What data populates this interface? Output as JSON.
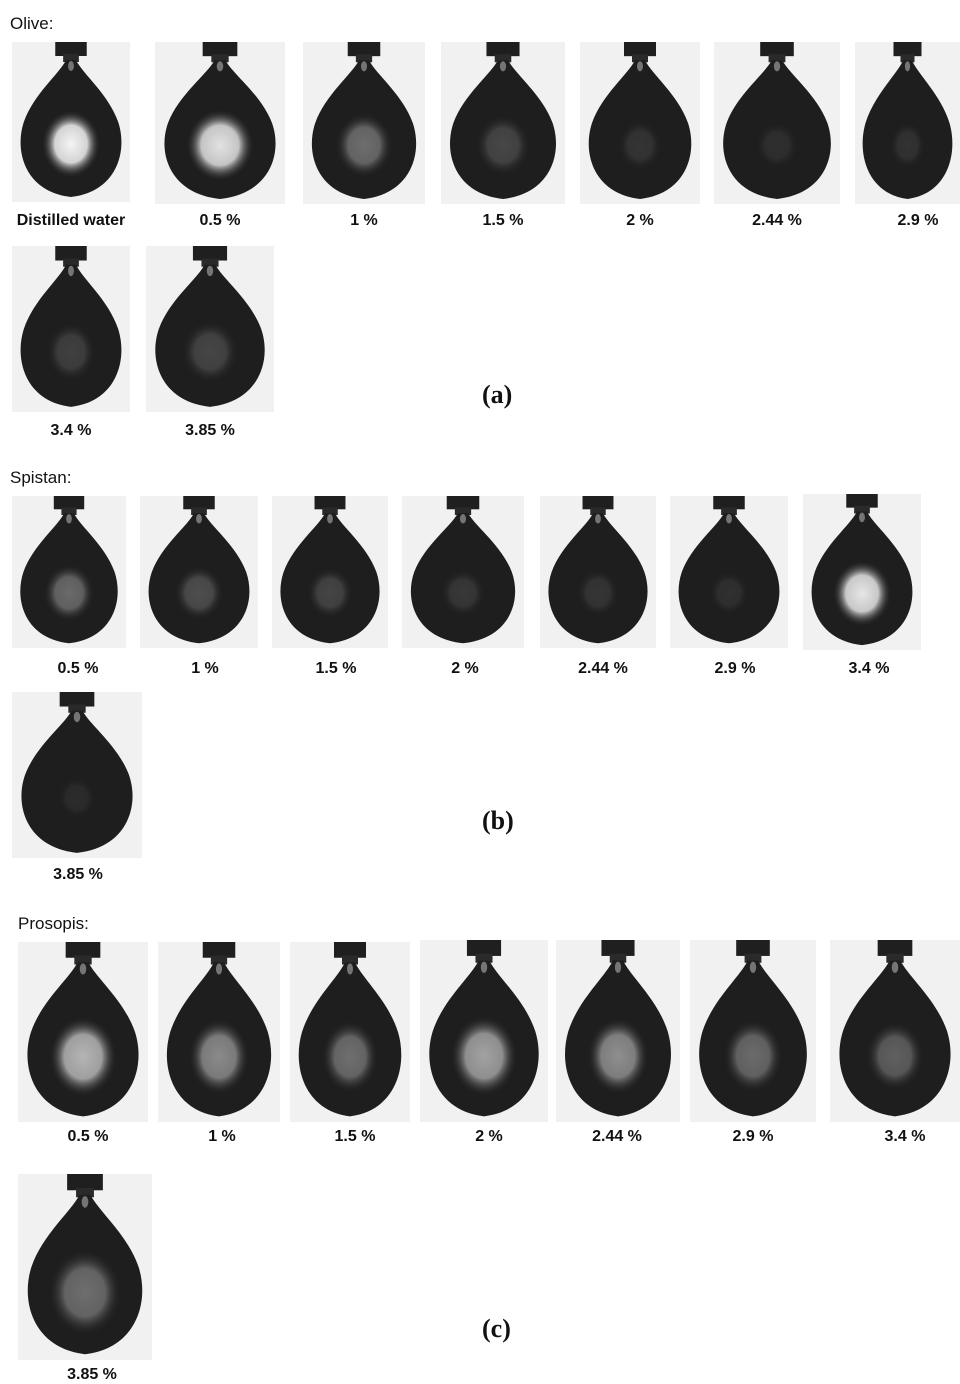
{
  "figure": {
    "panels": [
      {
        "title": "Olive:",
        "letter": "(a)",
        "samples": [
          {
            "label": "Distilled water",
            "core_color": "#f4f4f4",
            "core_size": 1.0
          },
          {
            "label": "0.5 %",
            "core_color": "#e2e2e2",
            "core_size": 1.05
          },
          {
            "label": "1 %",
            "core_color": "#6e6e6e",
            "core_size": 0.95
          },
          {
            "label": "1.5 %",
            "core_color": "#474747",
            "core_size": 0.9
          },
          {
            "label": "2 %",
            "core_color": "#343434",
            "core_size": 0.75
          },
          {
            "label": "2.44 %",
            "core_color": "#2f2f2f",
            "core_size": 0.7
          },
          {
            "label": "2.9 %",
            "core_color": "#323232",
            "core_size": 0.7
          },
          {
            "label": "3.4 %",
            "core_color": "#404040",
            "core_size": 0.85
          },
          {
            "label": "3.85 %",
            "core_color": "#464646",
            "core_size": 0.9
          }
        ]
      },
      {
        "title": "Spistan:",
        "letter": "(b)",
        "samples": [
          {
            "label": "0.5 %",
            "core_color": "#6a6a6a",
            "core_size": 0.9
          },
          {
            "label": "1 %",
            "core_color": "#4e4e4e",
            "core_size": 0.85
          },
          {
            "label": "1.5 %",
            "core_color": "#454545",
            "core_size": 0.8
          },
          {
            "label": "2 %",
            "core_color": "#383838",
            "core_size": 0.75
          },
          {
            "label": "2.44 %",
            "core_color": "#353535",
            "core_size": 0.75
          },
          {
            "label": "2.9 %",
            "core_color": "#303030",
            "core_size": 0.7
          },
          {
            "label": "3.4 %",
            "core_color": "#e6e6e6",
            "core_size": 1.0
          },
          {
            "label": "3.85 %",
            "core_color": "#2c2c2c",
            "core_size": 0.6
          }
        ]
      },
      {
        "title": "Prosopis:",
        "letter": "(c)",
        "samples": [
          {
            "label": "0.5 %",
            "core_color": "#b5b5b5",
            "core_size": 1.05
          },
          {
            "label": "1 %",
            "core_color": "#8a8a8a",
            "core_size": 1.0
          },
          {
            "label": "1.5 %",
            "core_color": "#6f6f6f",
            "core_size": 0.95
          },
          {
            "label": "2 %",
            "core_color": "#a2a2a2",
            "core_size": 1.05
          },
          {
            "label": "2.44 %",
            "core_color": "#8e8e8e",
            "core_size": 1.0
          },
          {
            "label": "2.9 %",
            "core_color": "#6b6b6b",
            "core_size": 0.95
          },
          {
            "label": "3.4 %",
            "core_color": "#606060",
            "core_size": 0.9
          },
          {
            "label": "3.85 %",
            "core_color": "#6e6e6e",
            "core_size": 1.1
          }
        ]
      }
    ]
  }
}
